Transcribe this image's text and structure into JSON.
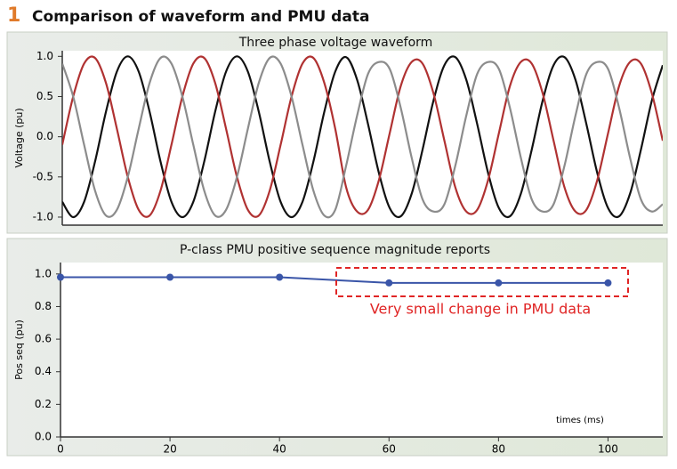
{
  "header": {
    "number": "1",
    "title": "Comparison of waveform and PMU data"
  },
  "chart_data": [
    {
      "type": "line",
      "title": "Three phase voltage waveform",
      "y_label": "Voltage (pu)",
      "x": [
        0,
        2,
        4,
        6,
        8,
        10,
        12,
        14,
        16,
        18,
        20,
        22,
        24,
        26,
        28,
        30,
        32,
        34,
        36,
        38,
        40,
        42,
        44,
        46,
        48,
        50,
        52,
        54,
        56,
        58,
        60,
        62,
        64,
        66,
        68,
        70,
        72,
        74,
        76,
        78,
        80,
        82,
        84,
        86,
        88,
        90,
        92,
        94,
        96,
        98,
        100,
        102,
        104,
        106,
        108,
        110
      ],
      "xlim": [
        0,
        110
      ],
      "ylim": [
        -1.1,
        1.07
      ],
      "yticks": [
        {
          "value": -1,
          "label": "-1.0"
        },
        {
          "value": -0.5,
          "label": "-0.5"
        },
        {
          "value": 0,
          "label": "0.0"
        },
        {
          "value": 0.5,
          "label": "0.5"
        },
        {
          "value": 1,
          "label": "1.0"
        }
      ],
      "series": [
        {
          "color": "#111111",
          "values": [
            -0.81,
            -1,
            -0.81,
            -0.31,
            0.31,
            0.81,
            1,
            0.81,
            0.31,
            -0.31,
            -0.81,
            -1,
            -0.81,
            -0.31,
            0.31,
            0.81,
            1,
            0.81,
            0.31,
            -0.31,
            -0.81,
            -1,
            -0.81,
            -0.31,
            0.31,
            0.81,
            0.99,
            0.71,
            0.16,
            -0.45,
            -0.89,
            -0.99,
            -0.71,
            -0.16,
            0.45,
            0.89,
            0.99,
            0.71,
            0.16,
            -0.45,
            -0.89,
            -0.99,
            -0.71,
            -0.16,
            0.45,
            0.89,
            0.99,
            0.71,
            0.16,
            -0.45,
            -0.89,
            -0.99,
            -0.71,
            -0.16,
            0.45,
            0.89
          ]
        },
        {
          "color": "#b03232",
          "values": [
            -0.1,
            0.5,
            0.91,
            0.98,
            0.67,
            0.1,
            -0.5,
            -0.91,
            -0.98,
            -0.67,
            -0.1,
            0.5,
            0.91,
            0.98,
            0.67,
            0.1,
            -0.5,
            -0.91,
            -0.98,
            -0.67,
            -0.1,
            0.5,
            0.91,
            0.98,
            0.67,
            0.1,
            -0.63,
            -0.93,
            -0.91,
            -0.54,
            0.05,
            0.63,
            0.93,
            0.91,
            0.54,
            -0.05,
            -0.63,
            -0.93,
            -0.91,
            -0.54,
            0.05,
            0.63,
            0.93,
            0.91,
            0.54,
            -0.05,
            -0.63,
            -0.93,
            -0.91,
            -0.54,
            0.05,
            0.63,
            0.93,
            0.91,
            0.54,
            -0.05
          ]
        },
        {
          "color": "#8c8c8c",
          "values": [
            0.91,
            0.5,
            -0.1,
            -0.67,
            -0.98,
            -0.91,
            -0.5,
            0.1,
            0.67,
            0.98,
            0.91,
            0.5,
            -0.1,
            -0.67,
            -0.98,
            -0.91,
            -0.5,
            0.1,
            0.67,
            0.98,
            0.91,
            0.5,
            -0.1,
            -0.67,
            -0.98,
            -0.91,
            -0.36,
            0.26,
            0.78,
            0.93,
            0.84,
            0.36,
            -0.26,
            -0.78,
            -0.93,
            -0.84,
            -0.36,
            0.26,
            0.78,
            0.93,
            0.84,
            0.36,
            -0.26,
            -0.78,
            -0.93,
            -0.84,
            -0.36,
            0.26,
            0.78,
            0.93,
            0.84,
            0.36,
            -0.26,
            -0.78,
            -0.93,
            -0.84
          ]
        }
      ]
    },
    {
      "type": "line",
      "title": "P-class PMU positive sequence magnitude reports",
      "y_label": "Pos seq (pu)",
      "x_label": "times (ms)",
      "x": [
        0,
        20,
        40,
        60,
        80,
        100
      ],
      "xlim": [
        0,
        110
      ],
      "xticks": [
        0,
        20,
        40,
        60,
        80,
        100
      ],
      "ylim": [
        0,
        1.07
      ],
      "yticks": [
        {
          "value": 0,
          "label": "0.0"
        },
        {
          "value": 0.2,
          "label": "0.2"
        },
        {
          "value": 0.4,
          "label": "0.4"
        },
        {
          "value": 0.6,
          "label": "0.6"
        },
        {
          "value": 0.8,
          "label": "0.8"
        },
        {
          "value": 1,
          "label": "1.0"
        }
      ],
      "markers": true,
      "series": [
        {
          "color": "#3a55a8",
          "values": [
            0.98,
            0.98,
            0.98,
            0.945,
            0.945,
            0.945
          ]
        }
      ],
      "annotation": {
        "text": "Very small change in PMU data",
        "color": "#e02525"
      }
    }
  ]
}
